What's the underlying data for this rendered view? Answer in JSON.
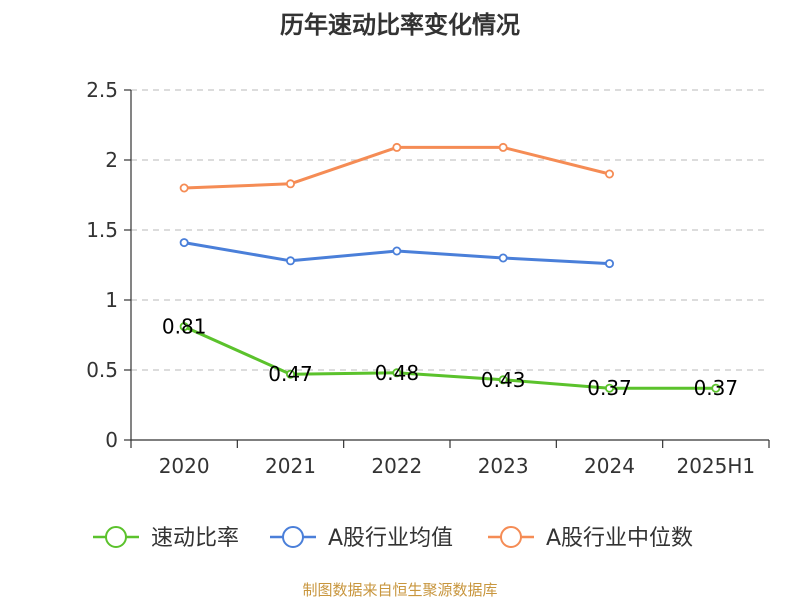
{
  "chart_data": {
    "type": "line",
    "title": "历年速动比率变化情况",
    "categories": [
      "2020",
      "2021",
      "2022",
      "2023",
      "2024",
      "2025H1"
    ],
    "ylim": [
      0,
      2.5
    ],
    "yticks": [
      "0",
      "0.5",
      "1",
      "1.5",
      "2",
      "2.5"
    ],
    "grid": true,
    "legend_position": "bottom",
    "series": [
      {
        "name": "速动比率",
        "color": "#5bc22c",
        "values": [
          0.81,
          0.47,
          0.48,
          0.43,
          0.37,
          0.37
        ],
        "labels": [
          "0.81",
          "0.47",
          "0.48",
          "0.43",
          "0.37",
          "0.37"
        ]
      },
      {
        "name": "A股行业均值",
        "color": "#4a7fd9",
        "values": [
          1.41,
          1.28,
          1.35,
          1.3,
          1.26,
          null
        ]
      },
      {
        "name": "A股行业中位数",
        "color": "#f58c55",
        "values": [
          1.8,
          1.83,
          2.09,
          2.09,
          1.9,
          null
        ]
      }
    ]
  },
  "source": "制图数据来自恒生聚源数据库"
}
